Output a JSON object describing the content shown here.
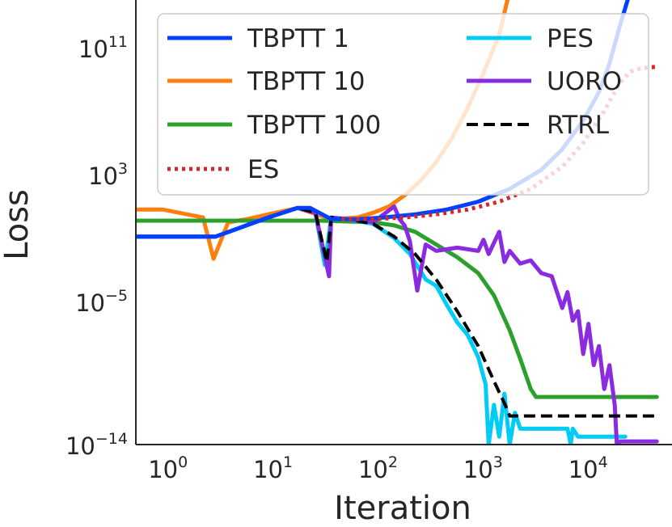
{
  "chart_data": {
    "type": "line",
    "xscale": "log",
    "yscale": "log",
    "xlabel": "Iteration",
    "ylabel": "Loss",
    "xlim": [
      0.55,
      70000
    ],
    "ylim_log10": [
      -14,
      14
    ],
    "xticks": [
      {
        "base": "10",
        "exp": "0"
      },
      {
        "base": "10",
        "exp": "1"
      },
      {
        "base": "10",
        "exp": "2"
      },
      {
        "base": "10",
        "exp": "3"
      },
      {
        "base": "10",
        "exp": "4"
      }
    ],
    "yticks": [
      {
        "base": "10",
        "exp": "11",
        "value_log10": 11
      },
      {
        "base": "10",
        "exp": "3",
        "value_log10": 3
      },
      {
        "base": "10",
        "exp": "−5",
        "value_log10": -5
      },
      {
        "base": "10",
        "exp": "−14",
        "value_log10": -14
      }
    ],
    "legend_position": "upper-center",
    "series": [
      {
        "name": "TBPTT 1",
        "color": "#0040ff",
        "style": "solid",
        "log10_x": [
          -0.26,
          0.5,
          1.0,
          1.28,
          1.4,
          1.6,
          1.85,
          2.1,
          2.4,
          2.7,
          3.0,
          3.3,
          3.6,
          3.8,
          4.0,
          4.15,
          4.25,
          4.35,
          4.45
        ],
        "log10_loss": [
          -0.9,
          -0.9,
          0.3,
          0.9,
          0.9,
          0.2,
          0.2,
          0.3,
          0.5,
          0.8,
          1.3,
          2.1,
          3.3,
          4.6,
          6.4,
          8.2,
          10.0,
          12.4,
          14.6
        ]
      },
      {
        "name": "TBPTT 10",
        "color": "#ff7f0e",
        "style": "solid",
        "log10_x": [
          -0.26,
          0.0,
          0.38,
          0.48,
          0.62,
          0.8,
          1.0,
          1.28,
          1.6,
          1.85,
          2.0,
          2.15,
          2.3,
          2.45,
          2.6,
          2.75,
          2.9,
          3.05,
          3.2,
          3.3
        ],
        "log10_loss": [
          0.8,
          0.8,
          0.3,
          -2.3,
          0.0,
          0.2,
          0.5,
          0.9,
          0.2,
          0.3,
          0.6,
          1.0,
          1.7,
          2.6,
          3.8,
          5.3,
          7.2,
          9.4,
          11.8,
          14.6
        ]
      },
      {
        "name": "TBPTT 100",
        "color": "#2ca02c",
        "style": "solid",
        "log10_x": [
          -0.26,
          0.5,
          1.0,
          1.5,
          2.0,
          2.2,
          2.4,
          2.6,
          2.8,
          3.0,
          3.15,
          3.3,
          3.4,
          3.5,
          3.55,
          3.6,
          4.0,
          4.5,
          4.7
        ],
        "log10_loss": [
          0.1,
          0.1,
          0.1,
          0.1,
          0.0,
          -0.2,
          -0.6,
          -1.4,
          -2.2,
          -3.2,
          -4.6,
          -6.8,
          -8.6,
          -10.5,
          -11.0,
          -11.0,
          -11.0,
          -11.0,
          -11.0
        ]
      },
      {
        "name": "ES",
        "color": "#d62728",
        "style": "dotted",
        "log10_x": [
          1.7,
          2.0,
          2.3,
          2.6,
          2.9,
          3.2,
          3.5,
          3.8,
          4.0,
          4.2,
          4.35,
          4.45,
          4.55,
          4.7
        ],
        "log10_loss": [
          0.2,
          0.2,
          0.3,
          0.5,
          0.8,
          1.3,
          2.1,
          3.5,
          5.0,
          7.0,
          8.8,
          9.5,
          9.7,
          9.8
        ]
      },
      {
        "name": "PES",
        "color": "#00ccf5",
        "style": "solid",
        "log10_x": [
          -0.26,
          0.5,
          1.0,
          1.28,
          1.45,
          1.54,
          1.6,
          1.75,
          2.0,
          2.2,
          2.35,
          2.5,
          2.6,
          2.7,
          2.8,
          2.9,
          3.0,
          3.07,
          3.1,
          3.15,
          3.2,
          3.25,
          3.3,
          3.35,
          3.4,
          3.5,
          3.7,
          3.85,
          3.88,
          3.9,
          3.95,
          4.2,
          4.4
        ],
        "log10_loss": [
          -0.9,
          -0.9,
          0.3,
          0.9,
          0.6,
          -2.7,
          0.3,
          0.2,
          -0.1,
          -1.0,
          -2.0,
          -3.6,
          -4.0,
          -5.2,
          -6.3,
          -7.1,
          -8.5,
          -10.2,
          -14.0,
          -11.5,
          -13.5,
          -10.8,
          -14.0,
          -12.0,
          -13.0,
          -13.0,
          -13.0,
          -13.0,
          -14.0,
          -13.0,
          -13.5,
          -13.5,
          -13.5
        ]
      },
      {
        "name": "UORO",
        "color": "#8a2be2",
        "style": "solid",
        "log10_x": [
          -0.26,
          0.5,
          1.0,
          1.28,
          1.45,
          1.58,
          1.6,
          1.75,
          2.0,
          2.2,
          2.25,
          2.3,
          2.35,
          2.42,
          2.5,
          2.6,
          2.8,
          3.0,
          3.05,
          3.1,
          3.2,
          3.25,
          3.3,
          3.4,
          3.5,
          3.6,
          3.7,
          3.8,
          3.85,
          3.9,
          3.95,
          4.0,
          4.05,
          4.1,
          4.15,
          4.2,
          4.25,
          4.3,
          4.32,
          4.35,
          4.5,
          4.7
        ],
        "log10_loss": [
          -0.9,
          -0.9,
          0.3,
          0.9,
          0.6,
          -3.4,
          0.3,
          0.2,
          0.0,
          1.0,
          0.2,
          -0.2,
          -1.2,
          -4.3,
          -1.4,
          -1.8,
          -1.6,
          -1.8,
          -1.1,
          -2.0,
          -0.6,
          -2.5,
          -1.8,
          -2.6,
          -2.4,
          -3.2,
          -3.4,
          -5.4,
          -4.4,
          -6.2,
          -5.6,
          -8.3,
          -6.4,
          -9.0,
          -7.8,
          -10.5,
          -9.0,
          -11.5,
          -14.0,
          -13.8,
          -13.8,
          -13.8
        ]
      },
      {
        "name": "RTRL",
        "color": "#000000",
        "style": "dashed",
        "log10_x": [
          -0.26,
          0.5,
          1.0,
          1.28,
          1.45,
          1.56,
          1.6,
          1.75,
          2.0,
          2.2,
          2.4,
          2.6,
          2.8,
          3.0,
          3.15,
          3.25,
          3.3,
          3.35,
          3.6,
          4.0,
          4.5,
          4.7
        ],
        "log10_loss": [
          -0.9,
          -0.9,
          0.3,
          0.9,
          0.6,
          -2.5,
          0.3,
          0.2,
          -0.1,
          -0.9,
          -2.0,
          -3.6,
          -5.6,
          -7.8,
          -10.0,
          -11.4,
          -12.2,
          -12.2,
          -12.2,
          -12.2,
          -12.2,
          -12.2
        ]
      }
    ]
  }
}
